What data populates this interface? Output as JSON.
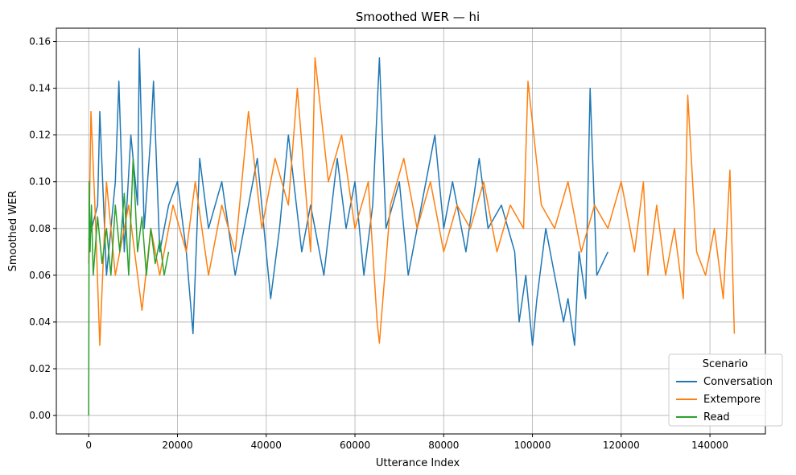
{
  "chart_data": {
    "type": "line",
    "title": "Smoothed WER — hi",
    "xlabel": "Utterance Index",
    "ylabel": "Smoothed WER",
    "xlim": [
      -7300,
      152500
    ],
    "ylim": [
      -0.0079,
      0.1657
    ],
    "xticks": [
      0,
      20000,
      40000,
      60000,
      80000,
      100000,
      120000,
      140000
    ],
    "xtick_labels": [
      "0",
      "20000",
      "40000",
      "60000",
      "80000",
      "100000",
      "120000",
      "140000"
    ],
    "yticks": [
      0.0,
      0.02,
      0.04,
      0.06,
      0.08,
      0.1,
      0.12,
      0.14,
      0.16
    ],
    "ytick_labels": [
      "0.00",
      "0.02",
      "0.04",
      "0.06",
      "0.08",
      "0.10",
      "0.12",
      "0.14",
      "0.16"
    ],
    "grid": true,
    "legend": {
      "title": "Scenario",
      "position": "lower-right"
    },
    "series": [
      {
        "name": "Conversation",
        "color": "#1f77b4",
        "x": [
          0,
          2000,
          2500,
          4000,
          6000,
          6800,
          8000,
          9500,
          11000,
          11400,
          12500,
          14000,
          14600,
          16000,
          18000,
          20000,
          22000,
          23500,
          25000,
          27000,
          30000,
          33000,
          36000,
          38000,
          41000,
          43000,
          45000,
          48000,
          50000,
          53000,
          56000,
          58000,
          60000,
          62000,
          64000,
          65500,
          67000,
          70000,
          72000,
          75000,
          78000,
          80000,
          82000,
          85000,
          88000,
          90000,
          93000,
          96000,
          97000,
          98500,
          100000,
          101000,
          103000,
          105000,
          107000,
          108000,
          109500,
          110500,
          112000,
          113000,
          114500,
          117000
        ],
        "y": [
          0.075,
          0.09,
          0.13,
          0.06,
          0.1,
          0.143,
          0.07,
          0.12,
          0.09,
          0.157,
          0.08,
          0.12,
          0.143,
          0.07,
          0.09,
          0.1,
          0.07,
          0.035,
          0.11,
          0.08,
          0.1,
          0.06,
          0.09,
          0.11,
          0.05,
          0.08,
          0.12,
          0.07,
          0.09,
          0.06,
          0.11,
          0.08,
          0.1,
          0.06,
          0.09,
          0.153,
          0.08,
          0.1,
          0.06,
          0.09,
          0.12,
          0.08,
          0.1,
          0.07,
          0.11,
          0.08,
          0.09,
          0.07,
          0.04,
          0.06,
          0.03,
          0.05,
          0.08,
          0.06,
          0.04,
          0.05,
          0.03,
          0.07,
          0.05,
          0.14,
          0.06,
          0.07
        ]
      },
      {
        "name": "Extempore",
        "color": "#ff7f0e",
        "x": [
          0,
          500,
          1500,
          2500,
          4000,
          6000,
          9000,
          12000,
          14000,
          16000,
          19000,
          22000,
          24000,
          27000,
          30000,
          33000,
          36000,
          39000,
          42000,
          45000,
          47000,
          50000,
          51000,
          54000,
          57000,
          60000,
          63000,
          65000,
          65500,
          68000,
          71000,
          74000,
          77000,
          80000,
          83000,
          86000,
          89000,
          92000,
          95000,
          98000,
          99000,
          102000,
          105000,
          108000,
          111000,
          114000,
          117000,
          120000,
          123000,
          125000,
          126000,
          128000,
          130000,
          132000,
          134000,
          135000,
          137000,
          139000,
          141000,
          143000,
          144500,
          145500
        ],
        "y": [
          0.065,
          0.13,
          0.085,
          0.03,
          0.1,
          0.06,
          0.09,
          0.045,
          0.08,
          0.06,
          0.09,
          0.07,
          0.1,
          0.06,
          0.09,
          0.07,
          0.13,
          0.08,
          0.11,
          0.09,
          0.14,
          0.07,
          0.153,
          0.1,
          0.12,
          0.08,
          0.1,
          0.04,
          0.031,
          0.09,
          0.11,
          0.08,
          0.1,
          0.07,
          0.09,
          0.08,
          0.1,
          0.07,
          0.09,
          0.08,
          0.143,
          0.09,
          0.08,
          0.1,
          0.07,
          0.09,
          0.08,
          0.1,
          0.07,
          0.1,
          0.06,
          0.09,
          0.06,
          0.08,
          0.05,
          0.137,
          0.07,
          0.06,
          0.08,
          0.05,
          0.105,
          0.035
        ]
      },
      {
        "name": "Read",
        "color": "#2ca02c",
        "x": [
          0,
          100,
          300,
          600,
          1000,
          2000,
          3000,
          4000,
          5000,
          6000,
          7000,
          8000,
          9000,
          10000,
          11000,
          12000,
          13000,
          14000,
          15000,
          16000,
          17000,
          18000
        ],
        "y": [
          0.0,
          0.1,
          0.07,
          0.09,
          0.06,
          0.085,
          0.065,
          0.08,
          0.06,
          0.09,
          0.07,
          0.095,
          0.06,
          0.11,
          0.07,
          0.085,
          0.06,
          0.08,
          0.065,
          0.075,
          0.06,
          0.07
        ]
      }
    ]
  }
}
